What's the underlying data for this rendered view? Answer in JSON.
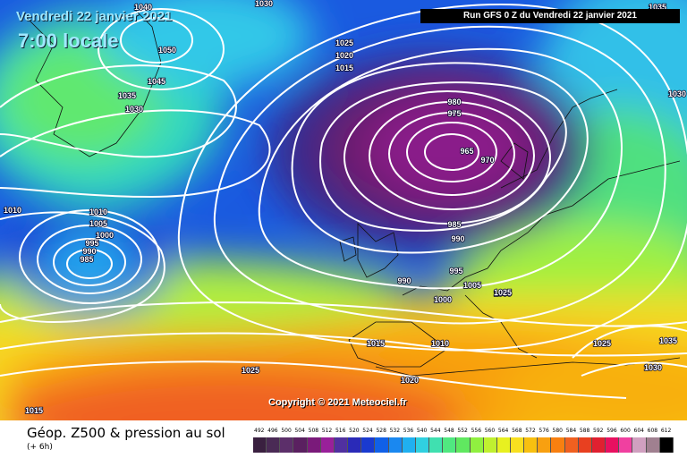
{
  "header": {
    "date_line": "Vendredi 22 janvier 2021",
    "time_line": "7:00 locale",
    "run_info": "Run GFS 0 Z du Vendredi 22 janvier 2021"
  },
  "copyright": "Copyright © 2021 Meteociel.fr",
  "footer": {
    "title": "Géop. Z500 & pression au sol",
    "subtitle": "(+ 6h)"
  },
  "legend": {
    "values": [
      "492",
      "496",
      "500",
      "504",
      "508",
      "512",
      "516",
      "520",
      "524",
      "528",
      "532",
      "536",
      "540",
      "544",
      "548",
      "552",
      "556",
      "560",
      "564",
      "568",
      "572",
      "576",
      "580",
      "584",
      "588",
      "592",
      "596",
      "600",
      "604",
      "608",
      "612"
    ],
    "colors": [
      "#3a2040",
      "#4a2a55",
      "#5c2f6a",
      "#5a2060",
      "#7a1a7a",
      "#99209a",
      "#5030a0",
      "#2a2ab8",
      "#1a3ad0",
      "#1060e8",
      "#1a88f0",
      "#20b0f0",
      "#30d0e0",
      "#40e0b0",
      "#50e880",
      "#60e860",
      "#90f040",
      "#c0f030",
      "#e8f020",
      "#f8e020",
      "#f8c010",
      "#f8a010",
      "#f88010",
      "#f06020",
      "#e84020",
      "#e02030",
      "#e81060",
      "#f040a0",
      "#d0a0c0",
      "#a08090",
      "#000000"
    ]
  },
  "pressure_labels": [
    "1040",
    "1050",
    "1045",
    "1035",
    "1030",
    "1030",
    "1025",
    "1020",
    "1015",
    "980",
    "975",
    "970",
    "965",
    "985",
    "990",
    "995",
    "1005",
    "1005",
    "1000",
    "990",
    "1010",
    "1010",
    "1005",
    "1000",
    "995",
    "990",
    "985",
    "1015",
    "1010",
    "1025",
    "1020",
    "1015",
    "1025",
    "1035",
    "1030",
    "1035",
    "1025",
    "1030"
  ]
}
